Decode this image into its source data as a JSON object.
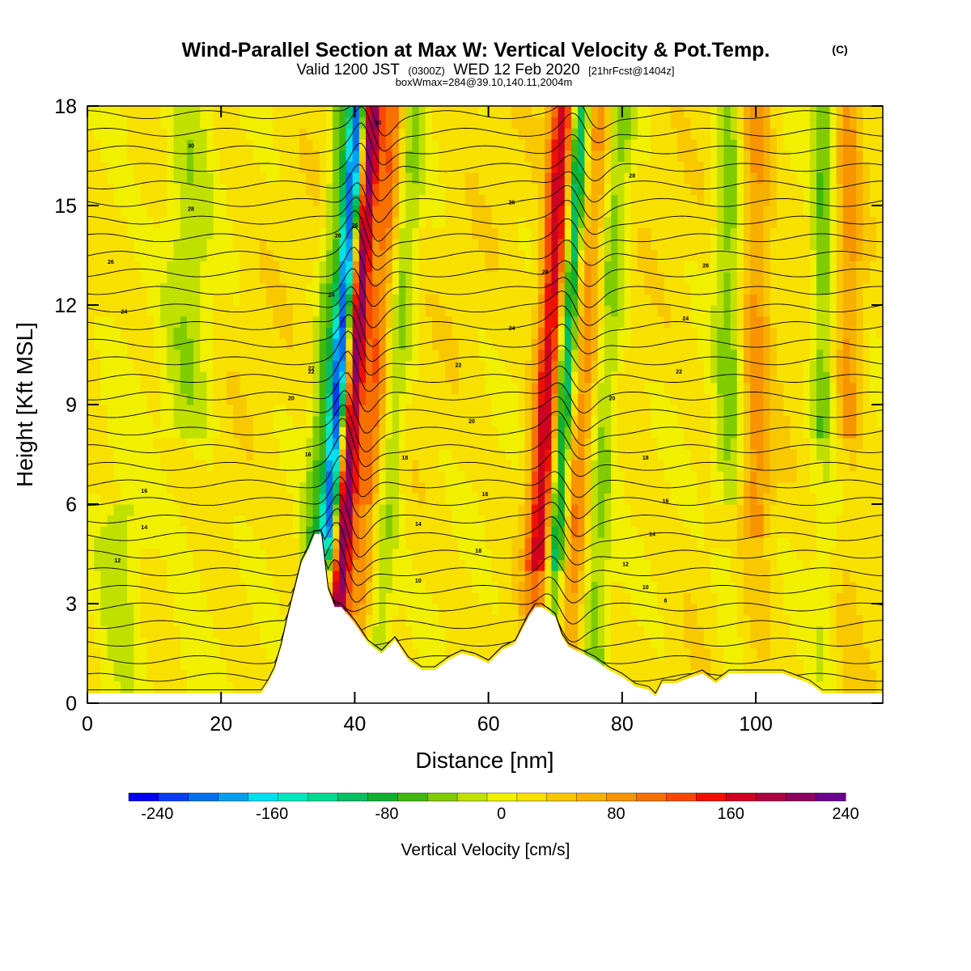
{
  "header": {
    "title": "Wind-Parallel Section at Max W: Vertical Velocity & Pot.Temp.",
    "copyright": "(C)",
    "valid_prefix": "Valid 1200 JST",
    "valid_utc": "(0300Z)",
    "valid_date": "WED 12 Feb 2020",
    "forecast": "[21hrFcst@1404z]",
    "box_info": "boxWmax=284@39.10,140.11,2004m"
  },
  "colorbar": {
    "title": "Vertical Velocity [cm/s]",
    "tick_labels": [
      "-240",
      "-160",
      "-80",
      "0",
      "80",
      "160",
      "240"
    ],
    "colors": [
      "#0000ee",
      "#0a3cf0",
      "#0070f0",
      "#00a0f0",
      "#00e0f0",
      "#00e8c0",
      "#00d890",
      "#00c060",
      "#10b030",
      "#40b810",
      "#80cc00",
      "#c0e000",
      "#f0f000",
      "#f8e000",
      "#f8c800",
      "#f8b000",
      "#f89400",
      "#f87000",
      "#f84800",
      "#f01000",
      "#d00020",
      "#b00040",
      "#900060",
      "#6a0090"
    ],
    "levels": [
      -260,
      -240,
      -220,
      -200,
      -180,
      -160,
      -140,
      -120,
      -100,
      -80,
      -60,
      -40,
      -20,
      0,
      20,
      40,
      60,
      80,
      100,
      120,
      140,
      160,
      180,
      200,
      220,
      240
    ]
  },
  "chart_data": {
    "type": "heatmap",
    "xlabel": "Distance [nm]",
    "ylabel": "Height [Kft MSL]",
    "xlim": [
      0,
      119
    ],
    "ylim": [
      0,
      18
    ],
    "x_ticks": [
      0,
      20,
      40,
      60,
      80,
      100
    ],
    "y_ticks": [
      0,
      3,
      6,
      9,
      12,
      15,
      18
    ],
    "z_label": "Vertical Velocity [cm/s]",
    "z_range": [
      -260,
      260
    ],
    "features": [
      {
        "name": "mountain-wave-1",
        "x_center": 37,
        "w_min_approx": -240,
        "w_max_approx": 200
      },
      {
        "name": "mountain-wave-2",
        "x_center": 71,
        "w_min_approx": -160,
        "w_max_approx": 120
      }
    ],
    "terrain_profile": {
      "x": [
        0,
        26,
        27,
        28,
        29,
        30,
        31,
        32,
        33,
        34,
        35,
        36,
        37,
        38,
        40,
        42,
        44,
        46,
        48,
        50,
        52,
        54,
        56,
        58,
        60,
        62,
        64,
        66,
        67,
        68,
        70,
        71,
        72,
        74,
        76,
        78,
        80,
        82,
        84,
        85,
        86,
        88,
        92,
        94,
        96,
        100,
        104,
        108,
        110,
        119
      ],
      "height_kft": [
        0.3,
        0.3,
        0.6,
        1.0,
        1.7,
        2.6,
        3.4,
        4.2,
        4.6,
        5.1,
        5.1,
        3.4,
        2.9,
        2.9,
        2.4,
        1.8,
        1.5,
        1.9,
        1.3,
        1.0,
        1.0,
        1.3,
        1.5,
        1.4,
        1.2,
        1.6,
        1.8,
        2.6,
        2.9,
        2.9,
        2.6,
        2.0,
        1.7,
        1.5,
        1.3,
        1.0,
        0.8,
        0.5,
        0.4,
        0.2,
        0.6,
        0.6,
        0.9,
        0.6,
        0.9,
        0.9,
        0.9,
        0.6,
        0.3,
        0.3
      ]
    },
    "theta_contours_C": [
      8,
      10,
      12,
      14,
      16,
      18,
      20,
      22,
      24,
      26,
      28,
      30
    ],
    "contour_labels": [
      {
        "text": "12",
        "x": 4.5,
        "y": 4.3
      },
      {
        "text": "14",
        "x": 8.5,
        "y": 5.3
      },
      {
        "text": "16",
        "x": 8.5,
        "y": 6.4
      },
      {
        "text": "20",
        "x": 30.5,
        "y": 9.2
      },
      {
        "text": "22",
        "x": 33.5,
        "y": 10.0
      },
      {
        "text": "24",
        "x": 5.5,
        "y": 11.8
      },
      {
        "text": "26",
        "x": 3.5,
        "y": 13.3
      },
      {
        "text": "28",
        "x": 15.5,
        "y": 14.9
      },
      {
        "text": "30",
        "x": 15.5,
        "y": 16.8
      },
      {
        "text": "10",
        "x": 49.5,
        "y": 3.7
      },
      {
        "text": "14",
        "x": 49.5,
        "y": 5.4
      },
      {
        "text": "16",
        "x": 59.5,
        "y": 6.3
      },
      {
        "text": "18",
        "x": 47.5,
        "y": 7.4
      },
      {
        "text": "20",
        "x": 57.5,
        "y": 8.5
      },
      {
        "text": "22",
        "x": 55.5,
        "y": 10.2
      },
      {
        "text": "24",
        "x": 63.5,
        "y": 11.3
      },
      {
        "text": "26",
        "x": 63.5,
        "y": 15.1
      },
      {
        "text": "28",
        "x": 68.5,
        "y": 13.0
      },
      {
        "text": "18",
        "x": 58.5,
        "y": 4.6
      },
      {
        "text": "8",
        "x": 86.5,
        "y": 3.1
      },
      {
        "text": "10",
        "x": 83.5,
        "y": 3.5
      },
      {
        "text": "12",
        "x": 80.5,
        "y": 4.2
      },
      {
        "text": "14",
        "x": 84.5,
        "y": 5.1
      },
      {
        "text": "16",
        "x": 86.5,
        "y": 6.1
      },
      {
        "text": "18",
        "x": 83.5,
        "y": 7.4
      },
      {
        "text": "20",
        "x": 78.5,
        "y": 9.2
      },
      {
        "text": "22",
        "x": 88.5,
        "y": 10.0
      },
      {
        "text": "24",
        "x": 89.5,
        "y": 11.6
      },
      {
        "text": "26",
        "x": 92.5,
        "y": 13.2
      },
      {
        "text": "28",
        "x": 81.5,
        "y": 15.9
      },
      {
        "text": "30",
        "x": 43.5,
        "y": 17.5
      },
      {
        "text": "16",
        "x": 33,
        "y": 7.5
      },
      {
        "text": "22",
        "x": 33.5,
        "y": 10.1
      },
      {
        "text": "24",
        "x": 36.5,
        "y": 12.3
      },
      {
        "text": "26",
        "x": 37.5,
        "y": 14.1
      },
      {
        "text": "26",
        "x": 40,
        "y": 14.4
      }
    ]
  }
}
